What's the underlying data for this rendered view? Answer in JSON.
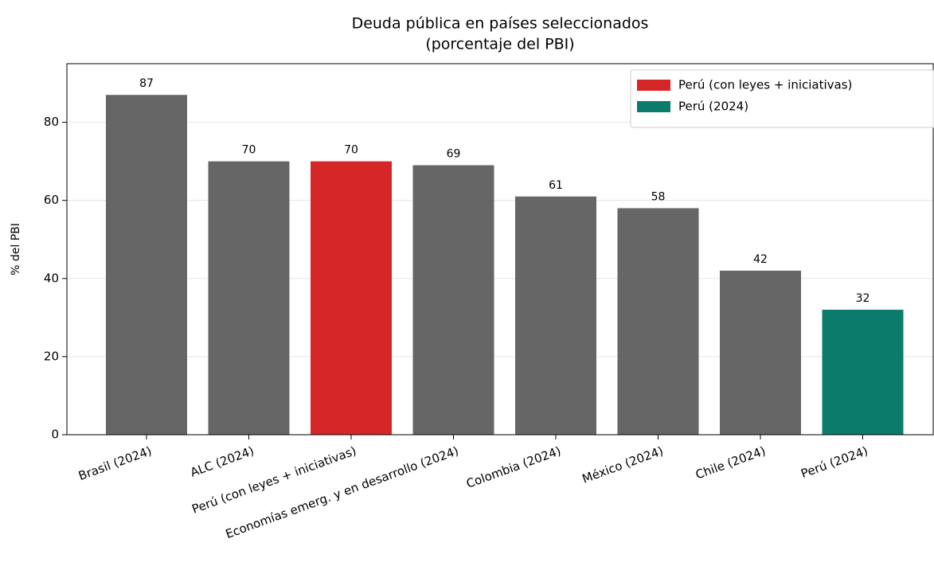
{
  "chart_data": {
    "type": "bar",
    "title": "Deuda pública en países seleccionados",
    "subtitle": "(porcentaje del PBI)",
    "ylabel": "% del PBI",
    "categories": [
      "Brasil (2024)",
      "ALC (2024)",
      "Perú (con leyes + iniciativas)",
      "Economías emerg. y en desarrollo (2024)",
      "Colombia (2024)",
      "México (2024)",
      "Chile (2024)",
      "Perú (2024)"
    ],
    "values": [
      87,
      70,
      70,
      69,
      61,
      58,
      42,
      32
    ],
    "colors": [
      "#666666",
      "#666666",
      "#d62728",
      "#666666",
      "#666666",
      "#666666",
      "#666666",
      "#0b7b6b"
    ],
    "legend": [
      {
        "name": "Perú (con leyes + iniciativas)",
        "color": "#d62728"
      },
      {
        "name": "Perú (2024)",
        "color": "#0b7b6b"
      }
    ],
    "legend_position": "upper right",
    "ylim": [
      0,
      95
    ],
    "yticks": [
      0,
      20,
      40,
      60,
      80
    ],
    "grid": true
  }
}
